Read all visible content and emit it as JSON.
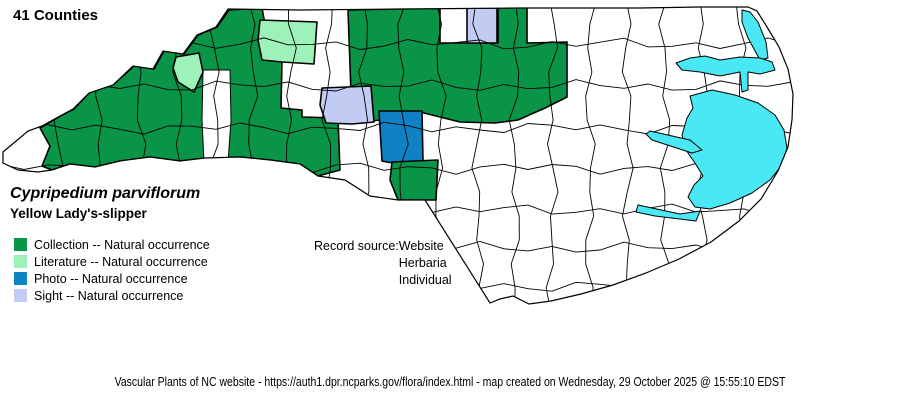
{
  "title": "41 Counties",
  "species": {
    "scientific_name": "Cypripedium parviflorum",
    "common_name": "Yellow Lady's-slipper"
  },
  "legend": {
    "items": [
      {
        "label": "Collection -- Natural occurrence",
        "key": "collection"
      },
      {
        "label": "Literature -- Natural occurrence",
        "key": "literature"
      },
      {
        "label": "Photo -- Natural occurrence",
        "key": "photo"
      },
      {
        "label": "Sight -- Natural occurrence",
        "key": "sight"
      }
    ]
  },
  "record_source": {
    "label": "Record source:",
    "values": [
      "Website",
      "Herbaria",
      "Individual"
    ]
  },
  "footer": "Vascular Plants of NC website - https://auth1.dpr.ncparks.gov/flora/index.html - map created on Wednesday, 29 October 2025 @ 15:55:10 EDST",
  "colors": {
    "collection": "#0A9447",
    "literature": "#9CF2B8",
    "photo": "#0E82C4",
    "sight": "#C2CCF2",
    "water": "#4AE8F5",
    "county_fill": "#FFFFFF",
    "border": "#000000"
  },
  "map": {
    "regions": [
      {
        "id": "collection-mountains",
        "status": "collection"
      },
      {
        "id": "uncolored-foothills-pocket",
        "status": "none"
      },
      {
        "id": "literature-county-large",
        "status": "literature"
      },
      {
        "id": "literature-county-small",
        "status": "literature"
      },
      {
        "id": "collection-north-piedmont",
        "status": "collection"
      },
      {
        "id": "sight-county-north",
        "status": "sight"
      },
      {
        "id": "sight-county-central",
        "status": "sight"
      },
      {
        "id": "photo-county-central",
        "status": "photo"
      },
      {
        "id": "collection-county-south",
        "status": "collection"
      }
    ],
    "water_bodies": [
      "currituck-sound",
      "albemarle-sound",
      "pamlico-sound",
      "pamlico-river",
      "neuse-river"
    ]
  }
}
